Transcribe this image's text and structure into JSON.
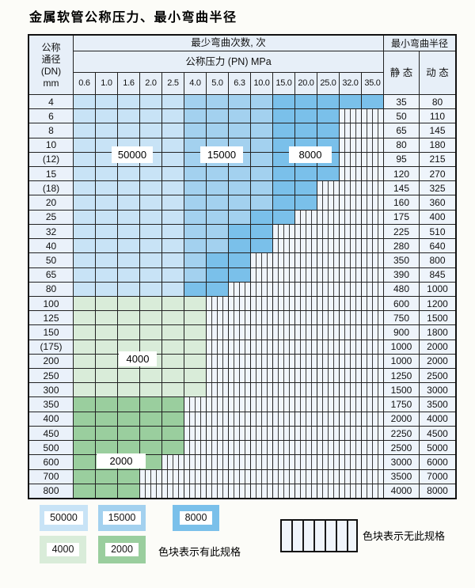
{
  "page": {
    "title": "金属软管公称压力、最小弯曲半径"
  },
  "colors": {
    "light_blue": "#c8e3f6",
    "medium_blue": "#a3d1ef",
    "dark_blue": "#7ac0ea",
    "light_green": "#d9ecd9",
    "dark_green": "#9ace9e",
    "header_bg": "#e7eff8",
    "dn_bg": "#eaf1fa",
    "val_bg": "#eef4fb",
    "hatch_bg": "#f0f5fb"
  },
  "table": {
    "corner": {
      "lines": [
        "公称",
        "通径",
        "(DN)",
        "mm"
      ]
    },
    "bend_header": "最少弯曲次数, 次",
    "pressure_header": "公称压力 (PN) MPa",
    "radius_header": "最小弯曲半径",
    "static_label": "静 态",
    "dynamic_label": "动 态",
    "pressure_columns": [
      "0.6",
      "1.0",
      "1.6",
      "2.0",
      "2.5",
      "4.0",
      "5.0",
      "6.3",
      "10.0",
      "15.0",
      "20.0",
      "25.0",
      "32.0",
      "35.0"
    ],
    "cell_legend_note": "l=50000 m=15000 d=8000 g=4000 G=2000 h=no-spec",
    "rows": [
      {
        "dn": "4",
        "cells": "lllllmmmmddddd",
        "static": "35",
        "dynamic": "80"
      },
      {
        "dn": "6",
        "cells": "lllllmmmmdddhh",
        "static": "50",
        "dynamic": "110"
      },
      {
        "dn": "8",
        "cells": "lllllmmmmdddhh",
        "static": "65",
        "dynamic": "145"
      },
      {
        "dn": "10",
        "cells": "lllllmmmmdddhh",
        "static": "80",
        "dynamic": "180"
      },
      {
        "dn": "(12)",
        "cells": "lllllmmmmdddhh",
        "static": "95",
        "dynamic": "215"
      },
      {
        "dn": "15",
        "cells": "lllllmmmmdddhh",
        "static": "120",
        "dynamic": "270"
      },
      {
        "dn": "(18)",
        "cells": "lllllmmmmddhhh",
        "static": "145",
        "dynamic": "325"
      },
      {
        "dn": "20",
        "cells": "lllllmmmmddhhh",
        "static": "160",
        "dynamic": "360"
      },
      {
        "dn": "25",
        "cells": "lllllmmmddhhhh",
        "static": "175",
        "dynamic": "400"
      },
      {
        "dn": "32",
        "cells": "lllllmmddhhhhh",
        "static": "225",
        "dynamic": "510"
      },
      {
        "dn": "40",
        "cells": "lllllmmddhhhhh",
        "static": "280",
        "dynamic": "640"
      },
      {
        "dn": "50",
        "cells": "lllllmddhhhhhh",
        "static": "350",
        "dynamic": "800"
      },
      {
        "dn": "65",
        "cells": "lllllmddhhhhhh",
        "static": "390",
        "dynamic": "845"
      },
      {
        "dn": "80",
        "cells": "lllllddhhhhhhh",
        "static": "480",
        "dynamic": "1000"
      },
      {
        "dn": "100",
        "cells": "gggggghhhhhhhh",
        "static": "600",
        "dynamic": "1200"
      },
      {
        "dn": "125",
        "cells": "gggggghhhhhhhh",
        "static": "750",
        "dynamic": "1500"
      },
      {
        "dn": "150",
        "cells": "gggggghhhhhhhh",
        "static": "900",
        "dynamic": "1800"
      },
      {
        "dn": "(175)",
        "cells": "gggggghhhhhhhh",
        "static": "1000",
        "dynamic": "2000"
      },
      {
        "dn": "200",
        "cells": "gggggghhhhhhhh",
        "static": "1000",
        "dynamic": "2000"
      },
      {
        "dn": "250",
        "cells": "gggggghhhhhhhh",
        "static": "1250",
        "dynamic": "2500"
      },
      {
        "dn": "300",
        "cells": "gggggghhhhhhhh",
        "static": "1500",
        "dynamic": "3000"
      },
      {
        "dn": "350",
        "cells": "GGGGGhhhhhhhhh",
        "static": "1750",
        "dynamic": "3500"
      },
      {
        "dn": "400",
        "cells": "GGGGGhhhhhhhhh",
        "static": "2000",
        "dynamic": "4000"
      },
      {
        "dn": "450",
        "cells": "GGGGGhhhhhhhhh",
        "static": "2250",
        "dynamic": "4500"
      },
      {
        "dn": "500",
        "cells": "GGGGGhhhhhhhhh",
        "static": "2500",
        "dynamic": "5000"
      },
      {
        "dn": "600",
        "cells": "GGGGhhhhhhhhhh",
        "static": "3000",
        "dynamic": "6000"
      },
      {
        "dn": "700",
        "cells": "GGGhhhhhhhhhhh",
        "static": "3500",
        "dynamic": "7000"
      },
      {
        "dn": "800",
        "cells": "GGGhhhhhhhhhhh",
        "static": "4000",
        "dynamic": "8000"
      }
    ],
    "overlays": {
      "v50000": "50000",
      "v15000": "15000",
      "v8000": "8000",
      "v4000": "4000",
      "v2000": "2000"
    }
  },
  "legend": {
    "items": [
      {
        "label": "50000",
        "color_key": "light_blue"
      },
      {
        "label": "15000",
        "color_key": "medium_blue"
      },
      {
        "label": "8000",
        "color_key": "dark_blue"
      },
      {
        "label": "4000",
        "color_key": "light_green"
      },
      {
        "label": "2000",
        "color_key": "dark_green"
      }
    ],
    "has_spec_text": "色块表示有此规格",
    "no_spec_text": "色块表示无此规格",
    "no_spec_swatch": "hatched"
  }
}
